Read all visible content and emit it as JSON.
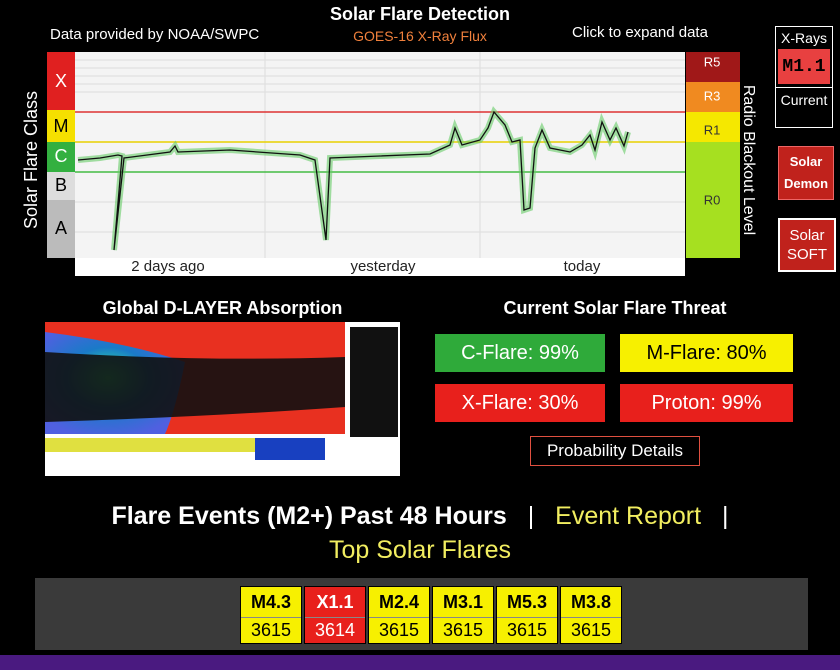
{
  "header": {
    "title": "Solar Flare Detection",
    "source": "Data provided by NOAA/SWPC",
    "subtitle": "GOES-16 X-Ray Flux",
    "expand": "Click to expand data"
  },
  "flux_chart": {
    "y_label": "Solar Flare Class",
    "classes": [
      "X",
      "M",
      "C",
      "B",
      "A"
    ],
    "right_label": "Radio Blackout Level",
    "blackout_levels": [
      "R5",
      "R3",
      "R1",
      "R0"
    ],
    "x_labels": [
      "2 days ago",
      "yesterday",
      "today"
    ]
  },
  "side_buttons": {
    "xrays_title": "X-Rays",
    "xrays_value": "M1.1",
    "xrays_caption": "Current",
    "demon": "Solar Demon",
    "soft": "Solar SOFT"
  },
  "absorption": {
    "title": "Global D-LAYER Absorption"
  },
  "threat": {
    "title": "Current Solar Flare Threat",
    "items": [
      "C-Flare: 99%",
      "M-Flare: 80%",
      "X-Flare: 30%",
      "Proton: 99%"
    ],
    "details": "Probability Details"
  },
  "events": {
    "heading": "Flare Events (M2+) Past 48 Hours",
    "separator": "|",
    "report": "Event Report",
    "top": "Top Solar Flares",
    "items": [
      {
        "class": "M4.3",
        "region": 3615
      },
      {
        "class": "X1.1",
        "region": 3614
      },
      {
        "class": "M2.4",
        "region": 3615
      },
      {
        "class": "M3.1",
        "region": 3615
      },
      {
        "class": "M5.3",
        "region": 3615
      },
      {
        "class": "M3.8",
        "region": 3615
      }
    ]
  }
}
